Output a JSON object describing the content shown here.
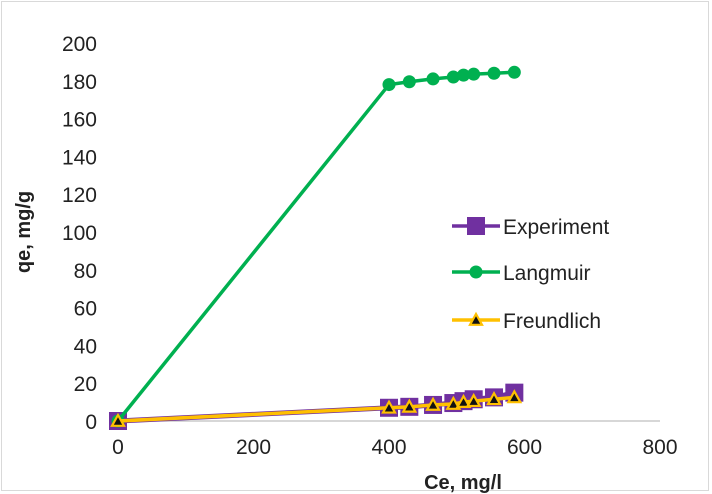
{
  "chart_data": {
    "type": "line",
    "title": "",
    "xlabel": "Ce, mg/l",
    "ylabel": "qe, mg/g",
    "xlim": [
      0,
      800
    ],
    "ylim": [
      0,
      200
    ],
    "x_ticks": [
      0,
      200,
      400,
      600,
      800
    ],
    "y_ticks": [
      0,
      20,
      40,
      60,
      80,
      100,
      120,
      140,
      160,
      180,
      200
    ],
    "grid": false,
    "legend_position": "right",
    "series": [
      {
        "name": "Experiment",
        "color": "#7030a0",
        "marker": "square",
        "x": [
          0,
          400,
          430,
          465,
          495,
          510,
          525,
          555,
          585
        ],
        "y": [
          0,
          7,
          7.5,
          8.5,
          9.5,
          10.5,
          11.5,
          12.5,
          15
        ]
      },
      {
        "name": "Langmuir",
        "color": "#00b050",
        "marker": "circle",
        "x": [
          0,
          400,
          430,
          465,
          495,
          510,
          525,
          555,
          585
        ],
        "y": [
          0,
          178,
          179.5,
          181,
          182,
          183,
          183.5,
          184,
          184.5
        ]
      },
      {
        "name": "Freundlich",
        "color": "#ffc000",
        "marker": "triangle",
        "x": [
          0,
          400,
          430,
          465,
          495,
          510,
          525,
          555,
          585
        ],
        "y": [
          0,
          7,
          7.5,
          8.5,
          9,
          10,
          10.5,
          11.5,
          12.5
        ]
      }
    ]
  }
}
